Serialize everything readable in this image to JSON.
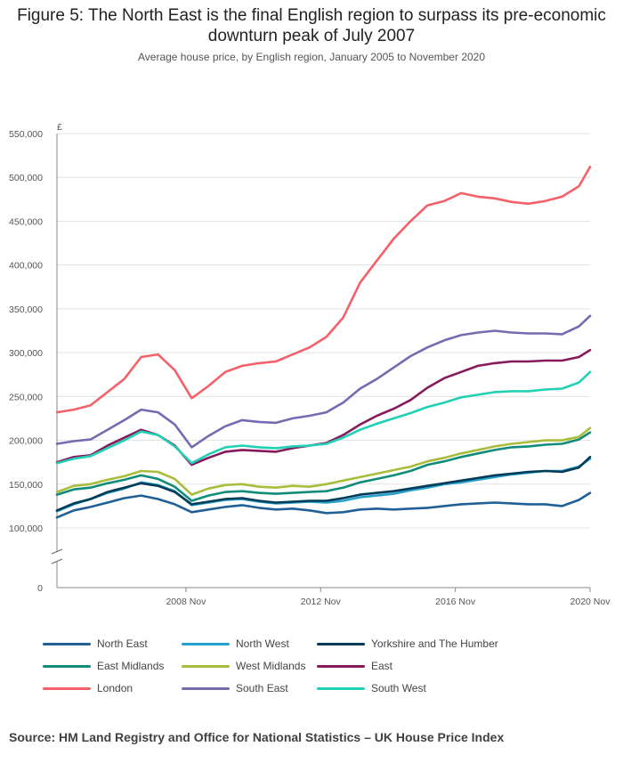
{
  "title": "Figure 5: The North East is the final English region to surpass its pre-economic downturn peak of July 2007",
  "subtitle": "Average house price, by English region, January 2005 to November 2020",
  "source": "Source: HM Land Registry and Office for National Statistics – UK House Price Index",
  "chart_data": {
    "type": "line",
    "title": "Figure 5: The North East is the final English region to surpass its pre-economic downturn peak of July 2007",
    "subtitle": "Average house price, by English region, January 2005 to November 2020",
    "ylabel": "£",
    "xlabel": "",
    "ylim": [
      0,
      550000
    ],
    "y_axis_break": [
      0,
      100000
    ],
    "grid": true,
    "legend_position": "bottom",
    "yticks": [
      0,
      100000,
      150000,
      200000,
      250000,
      300000,
      350000,
      400000,
      450000,
      500000,
      550000
    ],
    "ytick_labels": [
      "0",
      "100,000",
      "150,000",
      "200,000",
      "250,000",
      "300,000",
      "350,000",
      "400,000",
      "450,000",
      "500,000",
      "550,000"
    ],
    "xticks": [
      2008.83,
      2012.83,
      2016.83,
      2020.83
    ],
    "xtick_labels": [
      "2008 Nov",
      "2012 Nov",
      "2016 Nov",
      "2020 Nov"
    ],
    "x": [
      2005.0,
      2005.5,
      2006.0,
      2006.5,
      2007.0,
      2007.5,
      2008.0,
      2008.5,
      2009.0,
      2009.5,
      2010.0,
      2010.5,
      2011.0,
      2011.5,
      2012.0,
      2012.5,
      2013.0,
      2013.5,
      2014.0,
      2014.5,
      2015.0,
      2015.5,
      2016.0,
      2016.5,
      2017.0,
      2017.5,
      2018.0,
      2018.5,
      2019.0,
      2019.5,
      2020.0,
      2020.5,
      2020.83
    ],
    "series": [
      {
        "name": "North East",
        "color": "#206095",
        "values": [
          112000,
          120000,
          124000,
          129000,
          134000,
          137000,
          133000,
          127000,
          118000,
          121000,
          124000,
          126000,
          123000,
          121000,
          122000,
          120000,
          117000,
          118000,
          121000,
          122000,
          121000,
          122000,
          123000,
          125000,
          127000,
          128000,
          129000,
          128000,
          127000,
          127000,
          125000,
          132000,
          140000
        ]
      },
      {
        "name": "North West",
        "color": "#27a0cc",
        "values": [
          119000,
          127000,
          133000,
          140000,
          145000,
          152000,
          149000,
          142000,
          126000,
          129000,
          132000,
          133000,
          130000,
          128000,
          129000,
          130000,
          129000,
          131000,
          135000,
          137000,
          139000,
          143000,
          146000,
          150000,
          152000,
          155000,
          158000,
          161000,
          163000,
          165000,
          165000,
          170000,
          179000
        ]
      },
      {
        "name": "Yorkshire and The Humber",
        "color": "#003c57",
        "values": [
          120000,
          128000,
          133000,
          141000,
          146000,
          151000,
          148000,
          141000,
          127000,
          130000,
          133000,
          134000,
          131000,
          129000,
          130000,
          131000,
          131000,
          134000,
          138000,
          140000,
          142000,
          145000,
          148000,
          151000,
          154000,
          157000,
          160000,
          162000,
          164000,
          165000,
          164000,
          169000,
          181000
        ]
      },
      {
        "name": "East Midlands",
        "color": "#118c7b",
        "values": [
          138000,
          144000,
          146000,
          151000,
          155000,
          160000,
          156000,
          147000,
          131000,
          137000,
          141000,
          142000,
          140000,
          139000,
          140000,
          141000,
          142000,
          146000,
          152000,
          156000,
          160000,
          165000,
          172000,
          176000,
          181000,
          185000,
          189000,
          192000,
          193000,
          195000,
          196000,
          201000,
          209000
        ]
      },
      {
        "name": "West Midlands",
        "color": "#a8bd3a",
        "values": [
          141000,
          148000,
          150000,
          155000,
          159000,
          165000,
          164000,
          156000,
          138000,
          145000,
          149000,
          150000,
          147000,
          146000,
          148000,
          147000,
          150000,
          154000,
          158000,
          162000,
          166000,
          170000,
          176000,
          180000,
          185000,
          189000,
          193000,
          196000,
          198000,
          200000,
          200000,
          204000,
          214000
        ]
      },
      {
        "name": "East",
        "color": "#871a5b",
        "values": [
          175000,
          181000,
          183000,
          194000,
          203000,
          212000,
          206000,
          194000,
          172000,
          180000,
          187000,
          189000,
          188000,
          187000,
          191000,
          194000,
          197000,
          206000,
          218000,
          228000,
          236000,
          246000,
          260000,
          271000,
          278000,
          285000,
          288000,
          290000,
          290000,
          291000,
          291000,
          295000,
          303000
        ]
      },
      {
        "name": "London",
        "color": "#f66068",
        "values": [
          232000,
          235000,
          240000,
          255000,
          270000,
          295000,
          298000,
          280000,
          248000,
          262000,
          278000,
          285000,
          288000,
          290000,
          298000,
          306000,
          318000,
          340000,
          380000,
          405000,
          430000,
          450000,
          468000,
          473000,
          482000,
          478000,
          476000,
          472000,
          470000,
          473000,
          478000,
          490000,
          512000
        ]
      },
      {
        "name": "South East",
        "color": "#746cb1",
        "values": [
          196000,
          199000,
          201000,
          212000,
          223000,
          235000,
          232000,
          218000,
          192000,
          205000,
          216000,
          223000,
          221000,
          220000,
          225000,
          228000,
          232000,
          243000,
          259000,
          270000,
          283000,
          296000,
          306000,
          314000,
          320000,
          323000,
          325000,
          323000,
          322000,
          322000,
          321000,
          330000,
          342000
        ]
      },
      {
        "name": "South West",
        "color": "#22d0b6",
        "values": [
          174000,
          179000,
          182000,
          191000,
          200000,
          210000,
          206000,
          193000,
          174000,
          184000,
          192000,
          194000,
          192000,
          191000,
          193000,
          194000,
          196000,
          203000,
          212000,
          219000,
          225000,
          231000,
          238000,
          243000,
          249000,
          252000,
          255000,
          256000,
          256000,
          258000,
          259000,
          266000,
          278000
        ]
      }
    ]
  }
}
